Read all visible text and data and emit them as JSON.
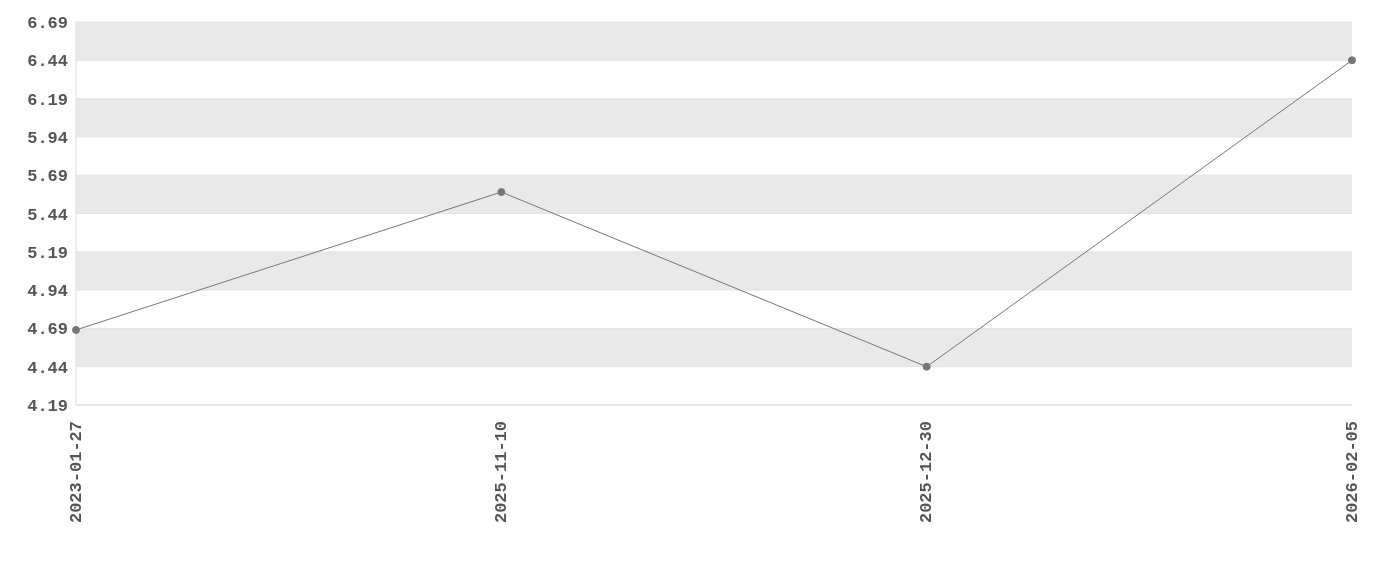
{
  "chart_data": {
    "type": "line",
    "categories": [
      "2023-01-27",
      "2025-11-10",
      "2025-12-30",
      "2026-02-05"
    ],
    "series": [
      {
        "color": "#777777",
        "values": [
          4.68,
          5.58,
          4.44,
          6.44
        ]
      }
    ],
    "ylim": [
      4.19,
      6.69
    ],
    "yticks": [
      4.19,
      4.44,
      4.69,
      4.94,
      5.19,
      5.44,
      5.69,
      5.94,
      6.19,
      6.44,
      6.69
    ],
    "grid": "y",
    "legend": false,
    "marker": "circle",
    "line_style": "solid"
  }
}
